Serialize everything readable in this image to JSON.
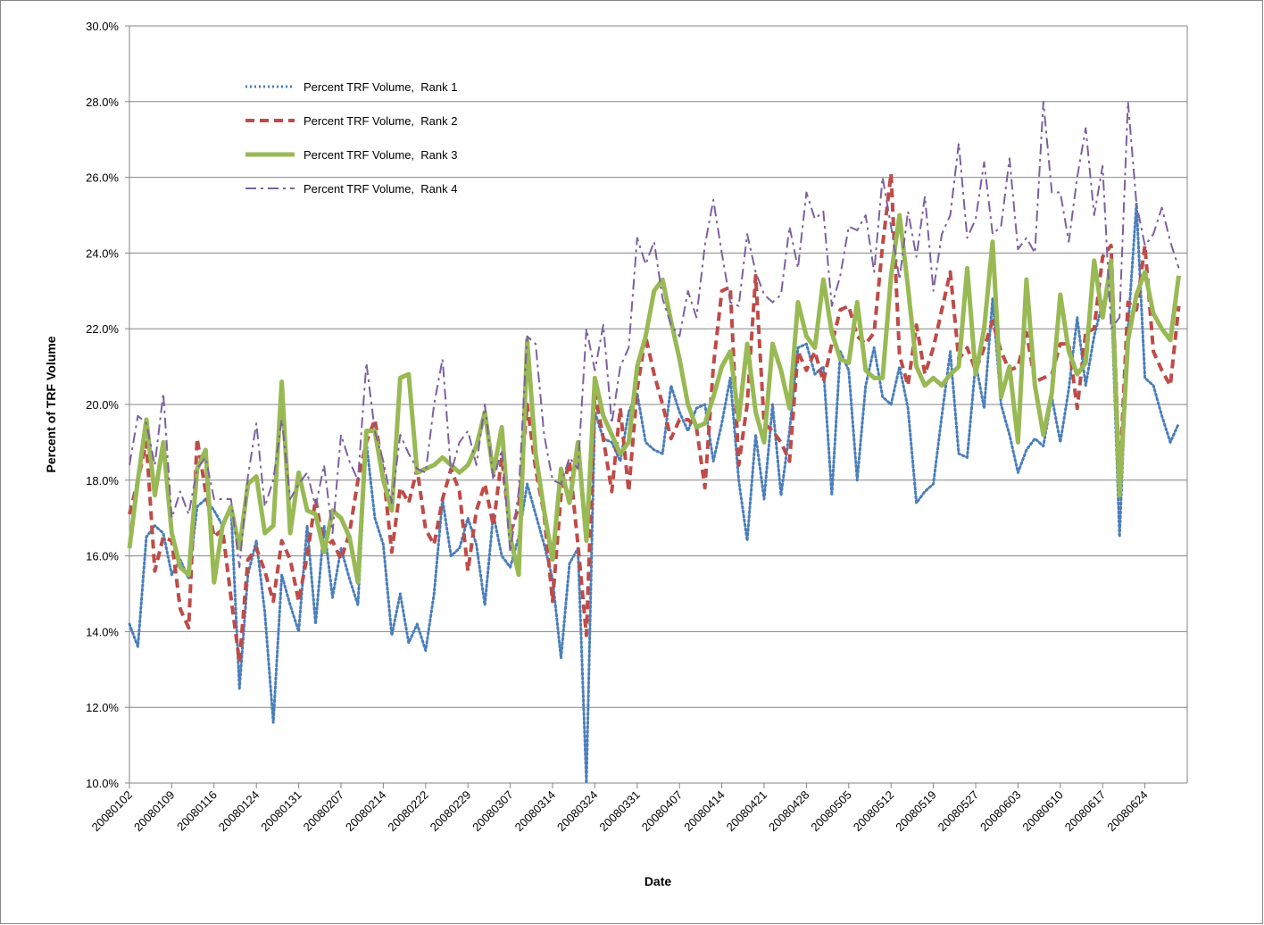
{
  "chart_data": {
    "type": "line",
    "x_label": "Date",
    "y_label": "Percent of TRF Volume",
    "categories": [
      "20080102",
      null,
      null,
      null,
      null,
      "20080109",
      null,
      null,
      null,
      null,
      "20080116",
      null,
      null,
      null,
      null,
      "20080124",
      null,
      null,
      null,
      null,
      "20080131",
      null,
      null,
      null,
      null,
      "20080207",
      null,
      null,
      null,
      null,
      "20080214",
      null,
      null,
      null,
      null,
      "20080222",
      null,
      null,
      null,
      null,
      "20080229",
      null,
      null,
      null,
      null,
      "20080307",
      null,
      null,
      null,
      null,
      "20080314",
      null,
      null,
      null,
      null,
      "20080324",
      null,
      null,
      null,
      null,
      "20080331",
      null,
      null,
      null,
      null,
      "20080407",
      null,
      null,
      null,
      null,
      "20080414",
      null,
      null,
      null,
      null,
      "20080421",
      null,
      null,
      null,
      null,
      "20080428",
      null,
      null,
      null,
      null,
      "20080505",
      null,
      null,
      null,
      null,
      "20080512",
      null,
      null,
      null,
      null,
      "20080519",
      null,
      null,
      null,
      null,
      "20080527",
      null,
      null,
      null,
      null,
      "20080603",
      null,
      null,
      null,
      null,
      "20080610",
      null,
      null,
      null,
      null,
      "20080617",
      null,
      null,
      null,
      null,
      "20080624",
      null,
      null,
      null,
      null
    ],
    "ylim": [
      10,
      30
    ],
    "yticks": [
      {
        "value": 10,
        "label": "10.0%"
      },
      {
        "value": 12,
        "label": "12.0%"
      },
      {
        "value": 14,
        "label": "14.0%"
      },
      {
        "value": 16,
        "label": "16.0%"
      },
      {
        "value": 18,
        "label": "18.0%"
      },
      {
        "value": 20,
        "label": "20.0%"
      },
      {
        "value": 22,
        "label": "22.0%"
      },
      {
        "value": 24,
        "label": "24.0%"
      },
      {
        "value": 26,
        "label": "26.0%"
      },
      {
        "value": 28,
        "label": "28.0%"
      },
      {
        "value": 30,
        "label": "30.0%"
      }
    ],
    "grid": true,
    "legend": "top-left",
    "series": [
      {
        "name": "Percent TRF Volume,  Rank 1",
        "color": "#4a7ebb",
        "line_style": "dotted",
        "values": [
          14.2,
          13.6,
          16.5,
          16.8,
          16.6,
          15.5,
          15.9,
          15.4,
          17.3,
          17.5,
          17.2,
          16.8,
          17.3,
          12.5,
          15.5,
          16.4,
          14.5,
          11.6,
          15.5,
          14.7,
          14.0,
          16.8,
          14.2,
          16.8,
          14.9,
          16.2,
          15.4,
          14.7,
          19.0,
          17.0,
          16.3,
          13.9,
          15.0,
          13.7,
          14.2,
          13.5,
          15.0,
          17.5,
          16.0,
          16.2,
          17.0,
          16.3,
          14.7,
          17.1,
          16.0,
          15.7,
          16.5,
          17.9,
          17.1,
          16.3,
          15.4,
          13.3,
          15.8,
          16.2,
          10.0,
          19.8,
          19.1,
          19.0,
          18.5,
          19.8,
          20.3,
          19.0,
          18.8,
          18.7,
          20.5,
          19.8,
          19.3,
          19.9,
          20.0,
          18.5,
          19.5,
          20.7,
          18.0,
          16.4,
          19.2,
          17.5,
          20.0,
          17.6,
          19.3,
          21.5,
          21.6,
          20.8,
          21.0,
          17.6,
          21.4,
          20.9,
          18.0,
          20.5,
          21.5,
          20.2,
          20.0,
          21.0,
          19.9,
          17.4,
          17.7,
          17.9,
          19.7,
          21.4,
          18.7,
          18.6,
          21.1,
          19.9,
          22.8,
          20.0,
          19.2,
          18.2,
          18.8,
          19.1,
          18.9,
          20.2,
          19.0,
          20.4,
          22.3,
          20.5,
          21.8,
          22.7,
          23.0,
          16.5,
          22.0,
          25.3,
          20.7,
          20.5,
          19.7,
          19.0,
          19.5
        ]
      },
      {
        "name": "Percent TRF Volume,  Rank 2",
        "color": "#be4b48",
        "line_style": "dashed",
        "values": [
          17.1,
          18.0,
          19.0,
          15.6,
          16.5,
          16.4,
          14.6,
          14.1,
          19.1,
          17.7,
          16.5,
          16.7,
          14.9,
          13.2,
          15.9,
          16.2,
          15.6,
          14.8,
          16.4,
          15.9,
          14.8,
          16.0,
          17.5,
          16.2,
          16.4,
          15.9,
          16.6,
          18.0,
          19.0,
          19.6,
          18.2,
          16.1,
          17.8,
          17.4,
          18.3,
          16.7,
          16.3,
          17.5,
          18.3,
          17.7,
          15.6,
          17.2,
          17.9,
          16.8,
          18.6,
          16.6,
          17.3,
          20.0,
          18.3,
          17.1,
          14.8,
          17.6,
          18.5,
          16.3,
          13.9,
          20.3,
          19.1,
          17.7,
          19.9,
          17.7,
          20.4,
          21.8,
          20.8,
          20.0,
          19.1,
          19.6,
          19.6,
          19.4,
          17.8,
          21.0,
          23.0,
          23.1,
          18.4,
          20.0,
          23.4,
          19.5,
          19.3,
          19.0,
          18.5,
          21.4,
          20.9,
          21.4,
          20.6,
          21.6,
          22.5,
          22.6,
          21.8,
          21.6,
          21.9,
          24.2,
          26.1,
          21.3,
          20.5,
          22.1,
          20.8,
          21.5,
          22.5,
          23.5,
          21.2,
          21.5,
          20.9,
          21.5,
          22.2,
          21.4,
          20.9,
          21.0,
          21.9,
          20.6,
          20.7,
          20.8,
          21.6,
          21.6,
          19.9,
          21.9,
          22.0,
          23.9,
          24.2,
          18.0,
          22.7,
          22.5,
          24.2,
          21.4,
          20.9,
          20.5,
          22.6
        ]
      },
      {
        "name": "Percent TRF Volume,  Rank 3",
        "color": "#98b954",
        "line_style": "solid",
        "values": [
          16.2,
          18.0,
          19.6,
          17.6,
          19.0,
          16.6,
          15.7,
          15.5,
          18.3,
          18.8,
          15.3,
          16.8,
          17.3,
          16.2,
          17.9,
          18.1,
          16.6,
          16.8,
          20.6,
          16.6,
          18.2,
          17.2,
          17.1,
          16.1,
          17.2,
          17.0,
          16.5,
          15.3,
          19.3,
          19.3,
          18.0,
          17.2,
          20.7,
          20.8,
          18.2,
          18.3,
          18.4,
          18.6,
          18.4,
          18.2,
          18.4,
          18.9,
          19.8,
          18.2,
          19.4,
          16.5,
          15.5,
          21.7,
          18.7,
          17.2,
          15.9,
          18.3,
          17.4,
          19.0,
          16.4,
          20.7,
          19.7,
          19.2,
          18.7,
          19.0,
          21.0,
          21.8,
          23.0,
          23.3,
          22.2,
          21.2,
          20.0,
          19.4,
          19.5,
          20.2,
          21.0,
          21.4,
          19.6,
          21.6,
          19.8,
          19.0,
          21.6,
          20.9,
          19.9,
          22.7,
          21.8,
          21.5,
          23.3,
          21.9,
          21.2,
          21.1,
          22.7,
          20.9,
          20.7,
          20.7,
          23.4,
          25.0,
          23.1,
          21.0,
          20.5,
          20.7,
          20.5,
          20.8,
          21.0,
          23.6,
          20.8,
          22.0,
          24.3,
          20.2,
          21.0,
          19.0,
          23.3,
          20.5,
          19.2,
          20.3,
          22.9,
          21.4,
          20.8,
          21.1,
          23.8,
          22.3,
          23.8,
          17.6,
          21.7,
          22.9,
          23.5,
          22.4,
          22.0,
          21.7,
          23.4
        ]
      },
      {
        "name": "Percent TRF Volume,  Rank 4",
        "color": "#7d60a0",
        "line_style": "dashdot",
        "values": [
          18.4,
          19.7,
          19.5,
          18.4,
          20.3,
          17.0,
          17.7,
          17.1,
          18.3,
          18.6,
          17.5,
          17.5,
          17.5,
          15.7,
          18.1,
          19.5,
          17.3,
          18.0,
          19.6,
          17.5,
          17.9,
          18.2,
          17.3,
          18.4,
          16.6,
          19.2,
          18.5,
          18.0,
          21.1,
          19.3,
          18.5,
          17.4,
          19.2,
          18.7,
          18.3,
          18.2,
          20.0,
          21.2,
          18.2,
          19.0,
          19.3,
          18.4,
          20.0,
          18.0,
          18.8,
          16.1,
          17.7,
          21.8,
          21.6,
          19.2,
          18.0,
          17.9,
          18.6,
          18.3,
          22.0,
          20.9,
          22.1,
          19.5,
          21.0,
          21.5,
          24.4,
          23.7,
          24.3,
          22.8,
          22.1,
          21.8,
          23.0,
          22.3,
          24.2,
          25.4,
          24.0,
          22.7,
          22.6,
          24.5,
          23.5,
          22.9,
          22.7,
          22.9,
          24.7,
          23.6,
          25.6,
          24.9,
          25.1,
          22.6,
          23.4,
          24.7,
          24.6,
          25.0,
          23.5,
          26.0,
          24.7,
          23.3,
          25.1,
          23.9,
          25.5,
          23.0,
          24.5,
          25.0,
          26.9,
          24.4,
          24.9,
          26.4,
          24.5,
          24.7,
          26.5,
          24.1,
          24.4,
          24.0,
          28.0,
          25.6,
          25.6,
          24.3,
          26.0,
          27.3,
          25.0,
          26.3,
          22.0,
          22.3,
          28.0,
          25.3,
          24.2,
          24.5,
          25.2,
          24.3,
          23.6
        ]
      }
    ]
  }
}
